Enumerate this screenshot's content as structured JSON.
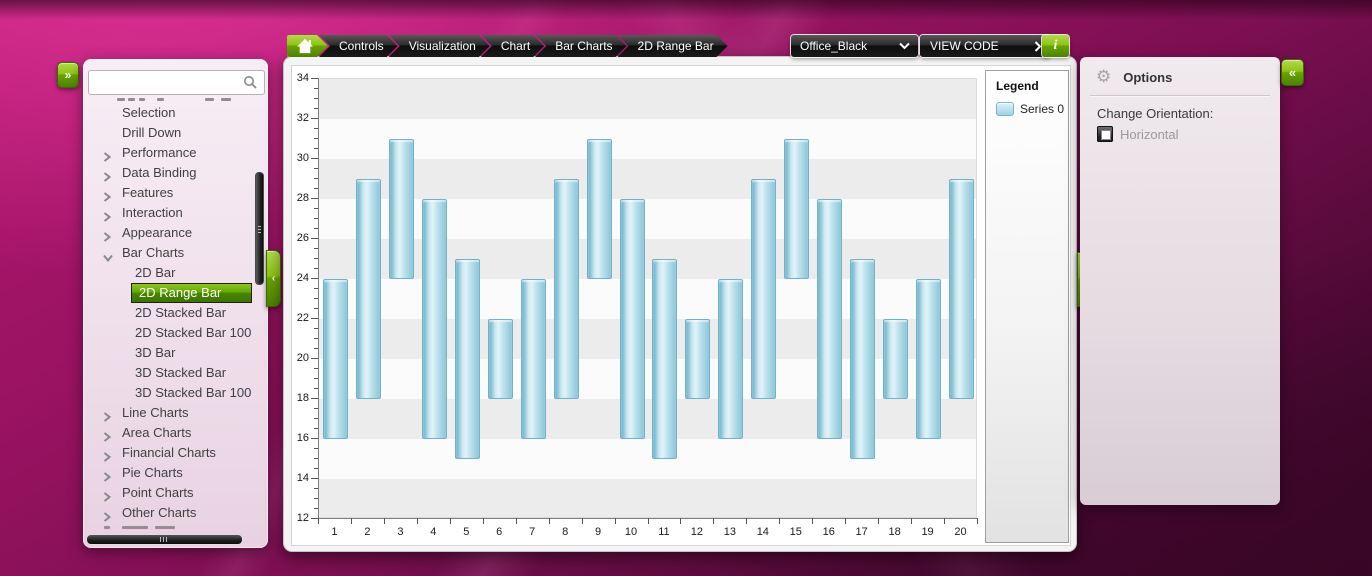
{
  "breadcrumb": {
    "home_icon": "home-icon",
    "items": [
      "Controls",
      "Visualization",
      "Chart",
      "Bar Charts",
      "2D Range Bar"
    ]
  },
  "toolbar": {
    "theme_value": "Office_Black",
    "view_code_label": "VIEW CODE",
    "info_label": "i"
  },
  "sidebar": {
    "search_value": "",
    "search_placeholder": "",
    "expand_button": "»",
    "collapse_tab": "‹",
    "items": [
      {
        "label": "Selection",
        "level": 0,
        "chevron": "none",
        "selected": false
      },
      {
        "label": "Drill Down",
        "level": 0,
        "chevron": "none",
        "selected": false
      },
      {
        "label": "Performance",
        "level": 0,
        "chevron": "right",
        "selected": false
      },
      {
        "label": "Data Binding",
        "level": 0,
        "chevron": "right",
        "selected": false
      },
      {
        "label": "Features",
        "level": 0,
        "chevron": "right",
        "selected": false
      },
      {
        "label": "Interaction",
        "level": 0,
        "chevron": "right",
        "selected": false
      },
      {
        "label": "Appearance",
        "level": 0,
        "chevron": "right",
        "selected": false
      },
      {
        "label": "Bar Charts",
        "level": 0,
        "chevron": "down",
        "selected": false
      },
      {
        "label": "2D Bar",
        "level": 1,
        "chevron": "none",
        "selected": false
      },
      {
        "label": "2D Range Bar",
        "level": 1,
        "chevron": "none",
        "selected": true
      },
      {
        "label": "2D Stacked Bar",
        "level": 1,
        "chevron": "none",
        "selected": false
      },
      {
        "label": "2D Stacked Bar 100",
        "level": 1,
        "chevron": "none",
        "selected": false
      },
      {
        "label": "3D Bar",
        "level": 1,
        "chevron": "none",
        "selected": false
      },
      {
        "label": "3D Stacked Bar",
        "level": 1,
        "chevron": "none",
        "selected": false
      },
      {
        "label": "3D Stacked Bar 100",
        "level": 1,
        "chevron": "none",
        "selected": false
      },
      {
        "label": "Line Charts",
        "level": 0,
        "chevron": "right",
        "selected": false
      },
      {
        "label": "Area Charts",
        "level": 0,
        "chevron": "right",
        "selected": false
      },
      {
        "label": "Financial Charts",
        "level": 0,
        "chevron": "right",
        "selected": false
      },
      {
        "label": "Pie Charts",
        "level": 0,
        "chevron": "right",
        "selected": false
      },
      {
        "label": "Point Charts",
        "level": 0,
        "chevron": "right",
        "selected": false
      },
      {
        "label": "Other Charts",
        "level": 0,
        "chevron": "right",
        "selected": false
      }
    ]
  },
  "chart_data": {
    "type": "bar",
    "subtype": "range-bar-vertical",
    "title": "",
    "xlabel": "",
    "ylabel": "",
    "categories": [
      1,
      2,
      3,
      4,
      5,
      6,
      7,
      8,
      9,
      10,
      11,
      12,
      13,
      14,
      15,
      16,
      17,
      18,
      19,
      20
    ],
    "series": [
      {
        "name": "Series 0",
        "low": [
          16,
          18,
          24,
          16,
          15,
          18,
          16,
          18,
          24,
          16,
          15,
          18,
          16,
          18,
          24,
          16,
          15,
          18,
          16,
          18
        ],
        "high": [
          24,
          29,
          31,
          28,
          25,
          22,
          24,
          29,
          31,
          28,
          25,
          22,
          24,
          29,
          31,
          28,
          25,
          22,
          24,
          29
        ]
      }
    ],
    "ylim": [
      12,
      34
    ],
    "ytick_major": 2,
    "ytick_minor": 0.5,
    "grid_bands": true,
    "legend_position": "right"
  },
  "legend": {
    "title": "Legend",
    "series_label": "Series 0"
  },
  "options": {
    "title": "Options",
    "orientation_label": "Change Orientation:",
    "horizontal_label": "Horizontal",
    "horizontal_checked": false,
    "collapse_button": "«"
  },
  "window": {
    "expand_tab_right": "›"
  },
  "colors": {
    "accent_green": "#7cb400",
    "bar_fill": "#a9d7e6",
    "bar_border": "#72b2c8",
    "band_gray": "#ececec",
    "background_magenta": "#9c1363",
    "dark_button": "#1a1a1a"
  }
}
